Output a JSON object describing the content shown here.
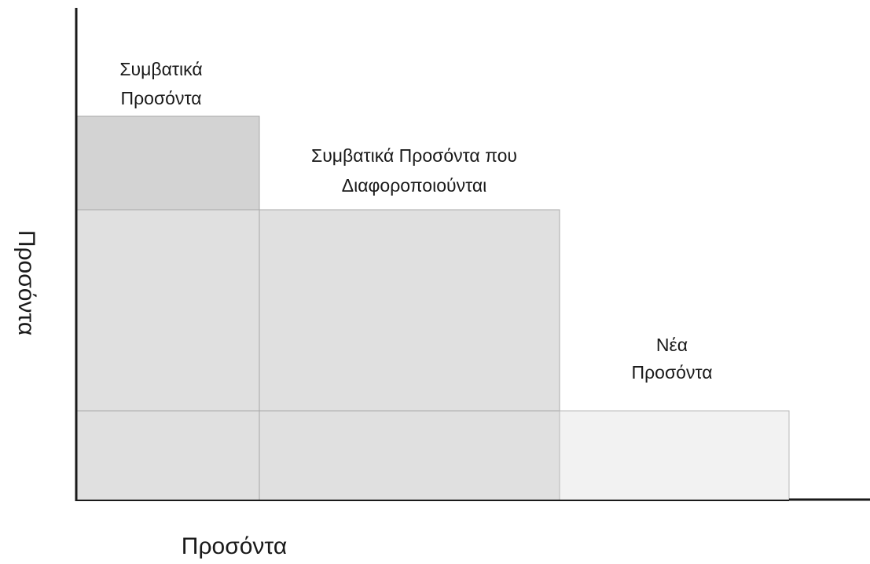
{
  "y_axis_label": "Προσόντα",
  "x_axis_label": "Προσόντα",
  "boxes": [
    {
      "label_lines": [
        "Συμβατικά",
        "Προσόντα"
      ]
    },
    {
      "label_lines": [
        "Συμβατικά Προσόντα που",
        "Διαφοροποιούνται"
      ]
    },
    {
      "label_lines": [
        "Νέα",
        "Προσόντα"
      ]
    }
  ]
}
